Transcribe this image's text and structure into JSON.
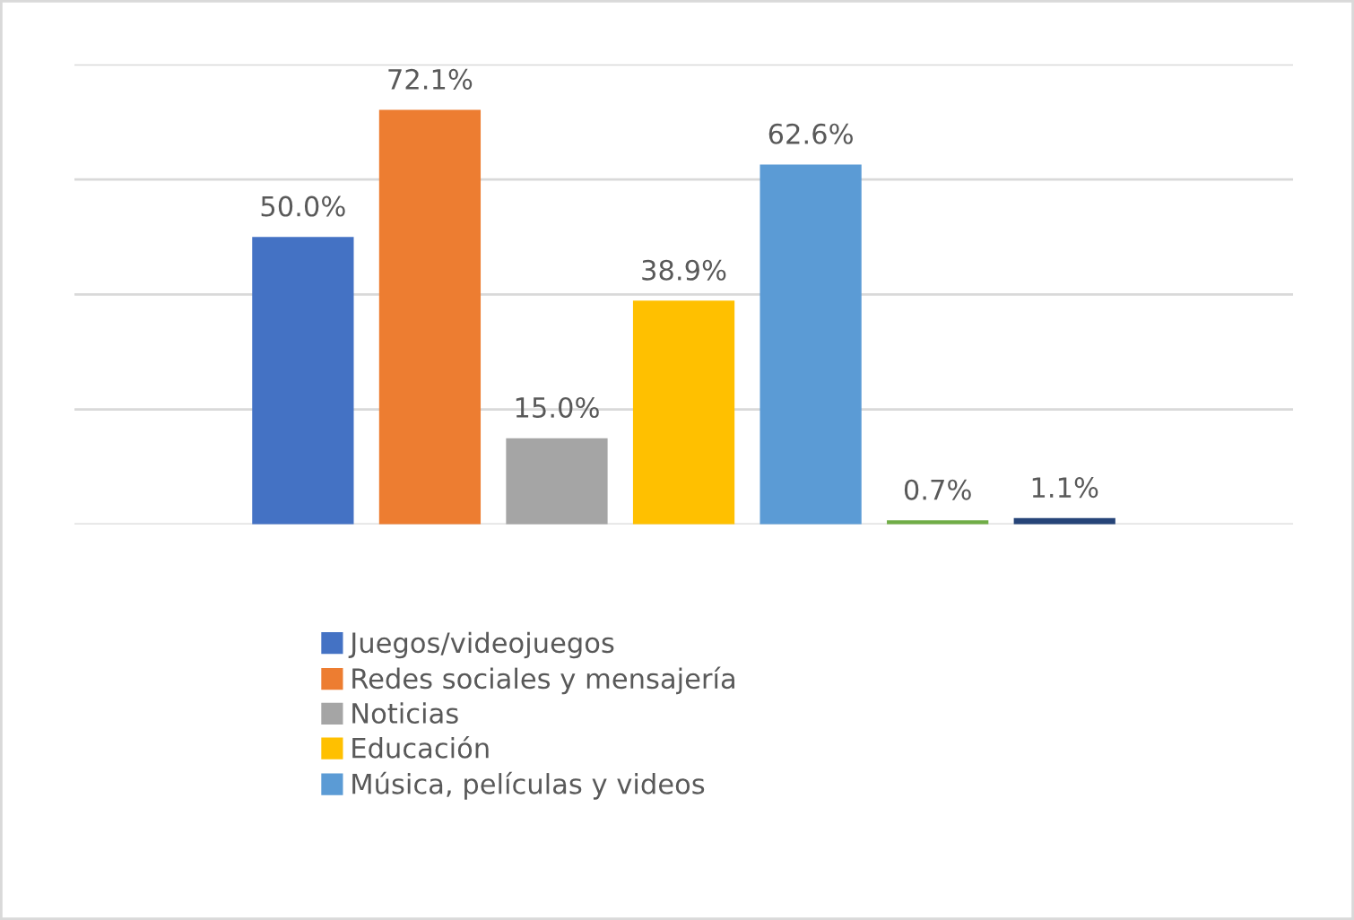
{
  "chart_data": {
    "type": "bar",
    "stacked": true,
    "categories": [
      null,
      null,
      null,
      null,
      null,
      null,
      null
    ],
    "series": [
      {
        "name": "Juegos/videojuegos",
        "color": "#4472c4",
        "values": [
          50.0,
          null,
          null,
          null,
          null,
          null,
          null
        ],
        "value_labels": [
          "50.0%",
          null,
          null,
          null,
          null,
          null,
          null
        ]
      },
      {
        "name": "Redes sociales y mensajería",
        "color": "#ed7d31",
        "values": [
          null,
          72.1,
          null,
          null,
          null,
          null,
          null
        ],
        "value_labels": [
          null,
          "72.1%",
          null,
          null,
          null,
          null,
          null
        ]
      },
      {
        "name": "Noticias",
        "color": "#a5a5a5",
        "values": [
          null,
          null,
          15.0,
          null,
          null,
          null,
          null
        ],
        "value_labels": [
          null,
          null,
          "15.0%",
          null,
          null,
          null,
          null
        ]
      },
      {
        "name": "Educación",
        "color": "#ffc000",
        "values": [
          null,
          null,
          null,
          38.9,
          null,
          null,
          null
        ],
        "value_labels": [
          null,
          null,
          null,
          "38.9%",
          null,
          null,
          null
        ]
      },
      {
        "name": "Música, películas y videos",
        "color": "#5b9bd5",
        "values": [
          null,
          null,
          null,
          null,
          62.6,
          null,
          null
        ],
        "value_labels": [
          null,
          null,
          null,
          null,
          "62.6%",
          null,
          null
        ]
      },
      {
        "color": "#70ad47",
        "values": [
          null,
          null,
          null,
          null,
          null,
          0.7,
          null
        ],
        "value_labels": [
          null,
          null,
          null,
          null,
          null,
          "0.7%",
          null
        ]
      },
      {
        "color": "#264478",
        "values": [
          null,
          null,
          null,
          null,
          null,
          null,
          1.1
        ],
        "value_labels": [
          null,
          null,
          null,
          null,
          null,
          null,
          "1.1%"
        ]
      }
    ],
    "ylim": [
      0,
      80
    ],
    "yticks": [
      {
        "value": 0,
        "label": null
      },
      {
        "value": 20,
        "label": null
      },
      {
        "value": 40,
        "label": null
      },
      {
        "value": 60,
        "label": null
      },
      {
        "value": 80,
        "label": null
      }
    ],
    "grid": "y",
    "legend": "bottom"
  }
}
